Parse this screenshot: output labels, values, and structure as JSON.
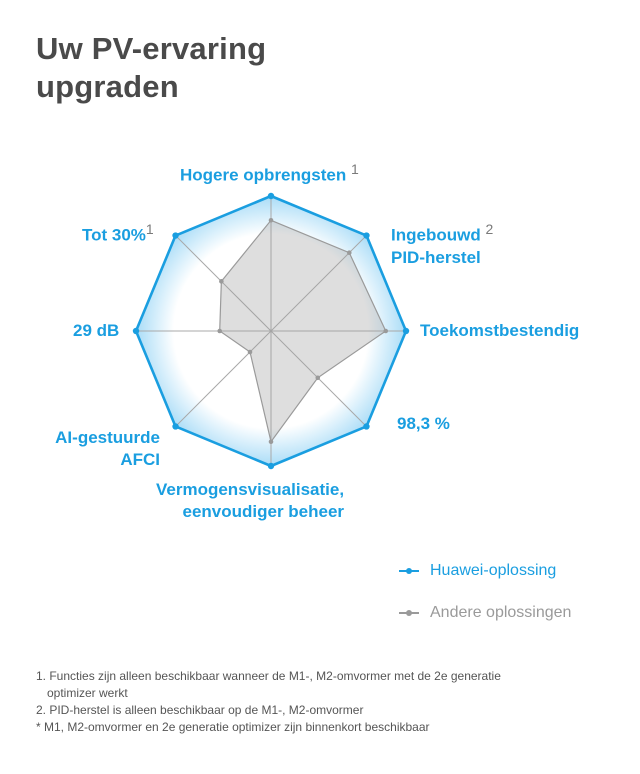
{
  "title_line1": "Uw PV-ervaring",
  "title_line2": "upgraden",
  "chart_data": {
    "type": "radar",
    "axes": [
      {
        "label": "Hogere opbrengsten",
        "sup": "1"
      },
      {
        "label": "Ingebouwd",
        "label2": "PID-herstel",
        "sup": "2"
      },
      {
        "label": "Toekomstbestendig"
      },
      {
        "label": "98,3 %"
      },
      {
        "label": "Vermogensvisualisatie,",
        "label2": "eenvoudiger beheer"
      },
      {
        "label": "AI-gestuurde",
        "label2": "AFCI"
      },
      {
        "label": "29 dB"
      },
      {
        "label": "Tot 30%",
        "sup": "1"
      }
    ],
    "series": [
      {
        "name": "Huawei-oplossing",
        "color": "#1a9ee0",
        "values": [
          1,
          1,
          1,
          1,
          1,
          1,
          1,
          1
        ]
      },
      {
        "name": "Andere oplossingen",
        "color": "#9a9a9a",
        "values": [
          0.82,
          0.82,
          0.85,
          0.49,
          0.82,
          0.22,
          0.38,
          0.52
        ]
      }
    ],
    "range": [
      0,
      1
    ]
  },
  "legend": {
    "huawei": "Huawei-oplossing",
    "other": "Andere oplossingen"
  },
  "footnotes": {
    "note1_line1": "1. Functies zijn alleen beschikbaar wanneer de M1-, M2-omvormer met de 2e generatie",
    "note1_line2": "optimizer werkt",
    "note2": "2. PID-herstel is alleen beschikbaar op de M1-, M2-omvormer",
    "note3": "* M1, M2-omvormer en 2e generatie optimizer zijn binnenkort beschikbaar"
  }
}
